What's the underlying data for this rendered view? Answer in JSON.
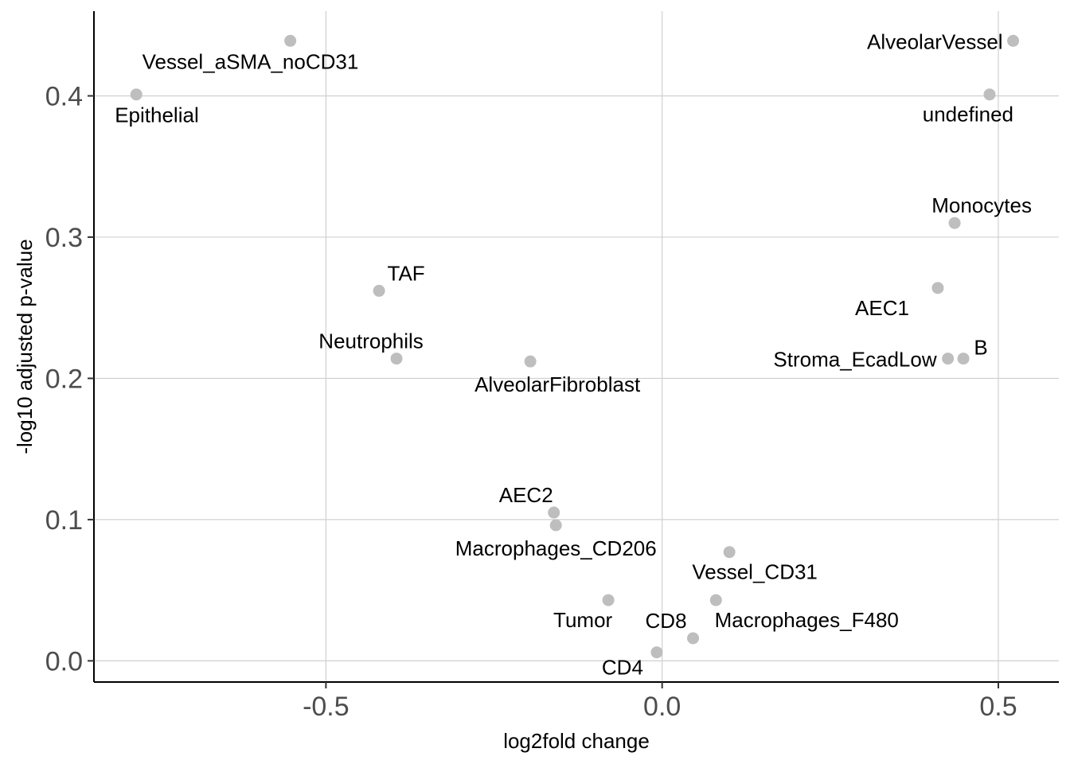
{
  "chart_data": {
    "type": "scatter",
    "title": "",
    "xlabel": "log2fold change",
    "ylabel": "-log10 adjusted p-value",
    "xlim": [
      -0.845,
      0.59
    ],
    "ylim": [
      -0.015,
      0.46
    ],
    "x_ticks": [
      -0.5,
      0.0,
      0.5
    ],
    "x_tick_labels": [
      "-0.5",
      "0.0",
      "0.5"
    ],
    "y_ticks": [
      0.0,
      0.1,
      0.2,
      0.3,
      0.4
    ],
    "y_tick_labels": [
      "0.0",
      "0.1",
      "0.2",
      "0.3",
      "0.4"
    ],
    "grid": true,
    "legend": "none",
    "point_color": "#bebebe",
    "points": [
      {
        "label": "Vessel_aSMA_noCD31",
        "x": -0.553,
        "y": 0.439
      },
      {
        "label": "Epithelial",
        "x": -0.782,
        "y": 0.401
      },
      {
        "label": "AlveolarVessel",
        "x": 0.522,
        "y": 0.439
      },
      {
        "label": "undefined",
        "x": 0.487,
        "y": 0.401
      },
      {
        "label": "Monocytes",
        "x": 0.435,
        "y": 0.31
      },
      {
        "label": "AEC1",
        "x": 0.41,
        "y": 0.264
      },
      {
        "label": "B",
        "x": 0.448,
        "y": 0.214
      },
      {
        "label": "Stroma_EcadLow",
        "x": 0.425,
        "y": 0.214
      },
      {
        "label": "TAF",
        "x": -0.421,
        "y": 0.262
      },
      {
        "label": "Neutrophils",
        "x": -0.395,
        "y": 0.214
      },
      {
        "label": "AlveolarFibroblast",
        "x": -0.196,
        "y": 0.212
      },
      {
        "label": "AEC2",
        "x": -0.161,
        "y": 0.105
      },
      {
        "label": "Macrophages_CD206",
        "x": -0.158,
        "y": 0.096
      },
      {
        "label": "Vessel_CD31",
        "x": 0.1,
        "y": 0.077
      },
      {
        "label": "Tumor",
        "x": -0.08,
        "y": 0.043
      },
      {
        "label": "Macrophages_F480",
        "x": 0.08,
        "y": 0.043
      },
      {
        "label": "CD8",
        "x": 0.046,
        "y": 0.016
      },
      {
        "label": "CD4",
        "x": -0.008,
        "y": 0.006
      }
    ]
  }
}
